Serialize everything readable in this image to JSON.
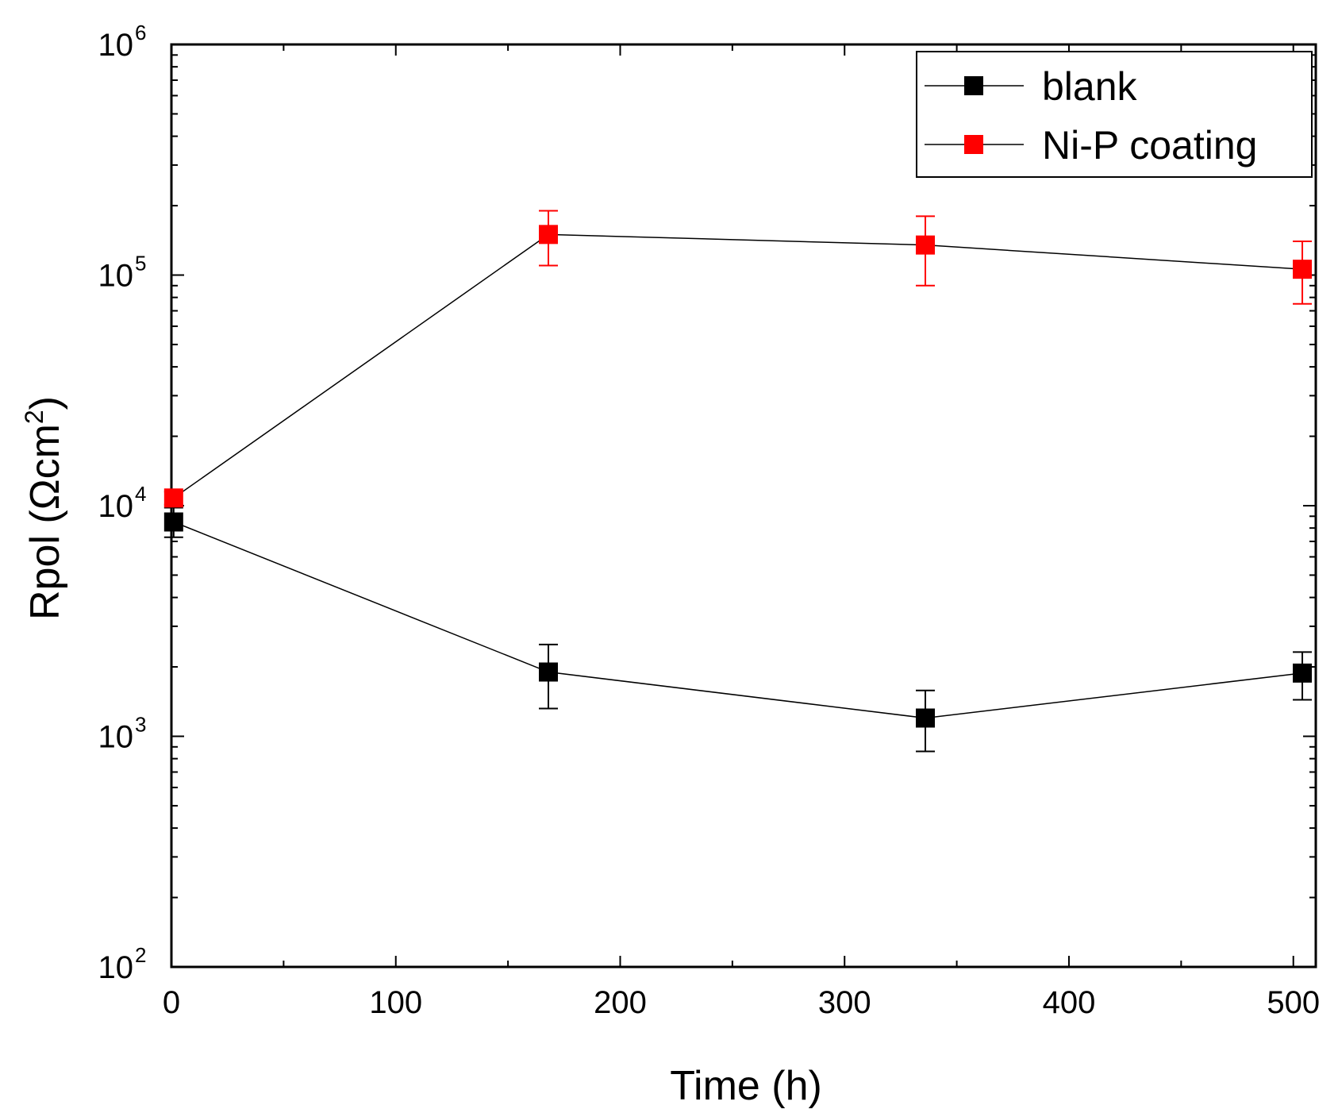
{
  "chart_data": {
    "type": "line",
    "title": "",
    "xlabel": "Time (h)",
    "ylabel_parts": {
      "prefix": "Rpol (Ωcm",
      "sup": "2",
      "suffix": ")"
    },
    "xlim": [
      0,
      510
    ],
    "ylim": [
      100,
      1000000
    ],
    "yscale": "log",
    "x_ticks": [
      0,
      100,
      200,
      300,
      400,
      500
    ],
    "x_tick_labels": [
      "0",
      "100",
      "200",
      "300",
      "400",
      "500"
    ],
    "y_ticks": [
      {
        "value": 100,
        "base": "10",
        "exp": "2"
      },
      {
        "value": 1000,
        "base": "10",
        "exp": "3"
      },
      {
        "value": 10000,
        "base": "10",
        "exp": "4"
      },
      {
        "value": 100000,
        "base": "10",
        "exp": "5"
      },
      {
        "value": 1000000,
        "base": "10",
        "exp": "6"
      }
    ],
    "legend_position": "top-right",
    "series": [
      {
        "name": "blank",
        "color": "#000000",
        "x": [
          1,
          168,
          336,
          504
        ],
        "y": [
          8500,
          1900,
          1200,
          1880
        ],
        "err_low": [
          7300,
          1320,
          860,
          1440
        ],
        "err_high": [
          9800,
          2500,
          1580,
          2320
        ]
      },
      {
        "name": "Ni-P coating",
        "color": "#ff0000",
        "x": [
          1,
          168,
          336,
          504
        ],
        "y": [
          10800,
          150000,
          135000,
          106000
        ],
        "err_low": [
          10100,
          110000,
          90000,
          75000
        ],
        "err_high": [
          11500,
          190000,
          180000,
          140000
        ]
      }
    ]
  }
}
